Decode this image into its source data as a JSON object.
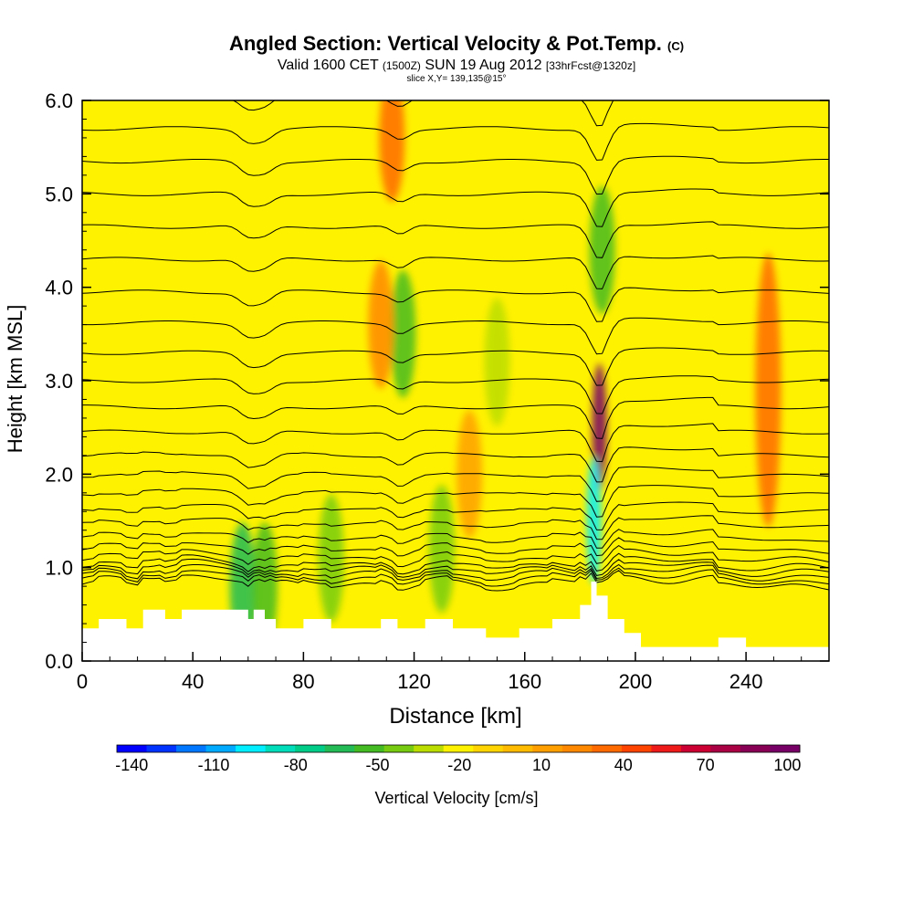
{
  "title_main": "Angled Section: Vertical Velocity & Pot.Temp.",
  "title_main_suffix": "(C)",
  "valid_prefix": "Valid 1600 CET",
  "valid_utc": "(1500Z)",
  "valid_date": "SUN 19 Aug 2012",
  "valid_fcst": "[33hrFcst@1320z]",
  "slice_text": "slice X,Y= 139,135@15°",
  "colors": {
    "field_background": "#fff200",
    "plot_frame": "#000000",
    "contour_line": "#000000",
    "terrain": "#ffffff"
  },
  "chart_data": {
    "type": "heatmap",
    "title": "Angled Section: Vertical Velocity & Pot.Temp.",
    "xlabel": "Distance [km]",
    "ylabel": "Height [km MSL]",
    "xlim": [
      0,
      270
    ],
    "ylim": [
      0,
      6
    ],
    "xticks": [
      0,
      40,
      80,
      120,
      160,
      200,
      240
    ],
    "xtick_labels": [
      "0",
      "40",
      "80",
      "120",
      "160",
      "200",
      "240"
    ],
    "yticks": [
      0,
      1,
      2,
      3,
      4,
      5,
      6
    ],
    "ytick_labels": [
      "0.0",
      "1.0",
      "2.0",
      "3.0",
      "4.0",
      "5.0",
      "6.0"
    ],
    "colorbar": {
      "label": "Vertical Velocity [cm/s]",
      "tick_labels": [
        "-140",
        "-110",
        "-80",
        "-50",
        "-20",
        "10",
        "40",
        "70",
        "100"
      ],
      "tick_values": [
        -140,
        -110,
        -80,
        -50,
        -20,
        10,
        40,
        70,
        100
      ],
      "min": -140,
      "max": 110,
      "colors": [
        "#0000ff",
        "#0033ff",
        "#0077ff",
        "#00aaff",
        "#00eeff",
        "#00ddbb",
        "#00cc88",
        "#22bb55",
        "#44bb22",
        "#77cc11",
        "#bbdd00",
        "#fff200",
        "#ffd400",
        "#ffbb00",
        "#ffa000",
        "#ff8800",
        "#ff6a00",
        "#ff4400",
        "#ee1a1a",
        "#cc0033",
        "#aa0044",
        "#880055",
        "#770066"
      ]
    },
    "terrain_profile_km": [
      {
        "x": 0,
        "h": 0.35
      },
      {
        "x": 6,
        "h": 0.45
      },
      {
        "x": 16,
        "h": 0.35
      },
      {
        "x": 22,
        "h": 0.55
      },
      {
        "x": 30,
        "h": 0.45
      },
      {
        "x": 36,
        "h": 0.55
      },
      {
        "x": 50,
        "h": 0.55
      },
      {
        "x": 60,
        "h": 0.45
      },
      {
        "x": 62,
        "h": 0.55
      },
      {
        "x": 66,
        "h": 0.45
      },
      {
        "x": 70,
        "h": 0.35
      },
      {
        "x": 80,
        "h": 0.45
      },
      {
        "x": 90,
        "h": 0.35
      },
      {
        "x": 100,
        "h": 0.35
      },
      {
        "x": 108,
        "h": 0.45
      },
      {
        "x": 114,
        "h": 0.35
      },
      {
        "x": 124,
        "h": 0.45
      },
      {
        "x": 134,
        "h": 0.35
      },
      {
        "x": 146,
        "h": 0.25
      },
      {
        "x": 158,
        "h": 0.35
      },
      {
        "x": 170,
        "h": 0.45
      },
      {
        "x": 180,
        "h": 0.6
      },
      {
        "x": 184,
        "h": 0.85
      },
      {
        "x": 186,
        "h": 0.7
      },
      {
        "x": 190,
        "h": 0.45
      },
      {
        "x": 196,
        "h": 0.3
      },
      {
        "x": 202,
        "h": 0.15
      },
      {
        "x": 230,
        "h": 0.25
      },
      {
        "x": 240,
        "h": 0.15
      },
      {
        "x": 270,
        "h": 0.15
      }
    ],
    "features": [
      {
        "x": 248,
        "y": 2.9,
        "value": 35,
        "note": "broad updraft"
      },
      {
        "x": 187,
        "y": 2.5,
        "value": 100,
        "note": "strong updraft core"
      },
      {
        "x": 185,
        "y": 1.5,
        "value": -90,
        "note": "downdraft"
      },
      {
        "x": 116,
        "y": 3.5,
        "value": -50,
        "note": "downdraft"
      },
      {
        "x": 188,
        "y": 4.4,
        "value": -50,
        "note": "downdraft"
      },
      {
        "x": 112,
        "y": 5.6,
        "value": 35,
        "note": "updraft"
      },
      {
        "x": 108,
        "y": 3.6,
        "value": 25,
        "note": "updraft"
      },
      {
        "x": 58,
        "y": 0.8,
        "value": -60,
        "note": "downdraft"
      },
      {
        "x": 66,
        "y": 0.8,
        "value": -50,
        "note": "downdraft"
      },
      {
        "x": 90,
        "y": 1.1,
        "value": -40,
        "note": "downdraft"
      },
      {
        "x": 130,
        "y": 1.2,
        "value": -35,
        "note": "downdraft"
      },
      {
        "x": 150,
        "y": 3.2,
        "value": -30,
        "note": "downdraft"
      },
      {
        "x": 140,
        "y": 2.0,
        "value": 20,
        "note": "updraft"
      }
    ],
    "pot_temp_contour_base_heights_km": [
      0.8,
      0.85,
      0.9,
      0.95,
      1.0,
      1.08,
      1.18,
      1.3,
      1.45,
      1.6,
      1.78,
      1.98,
      2.2,
      2.45,
      2.72,
      3.0,
      3.3,
      3.62,
      3.95,
      4.3,
      4.65,
      5.0,
      5.35,
      5.7,
      6.05
    ]
  }
}
